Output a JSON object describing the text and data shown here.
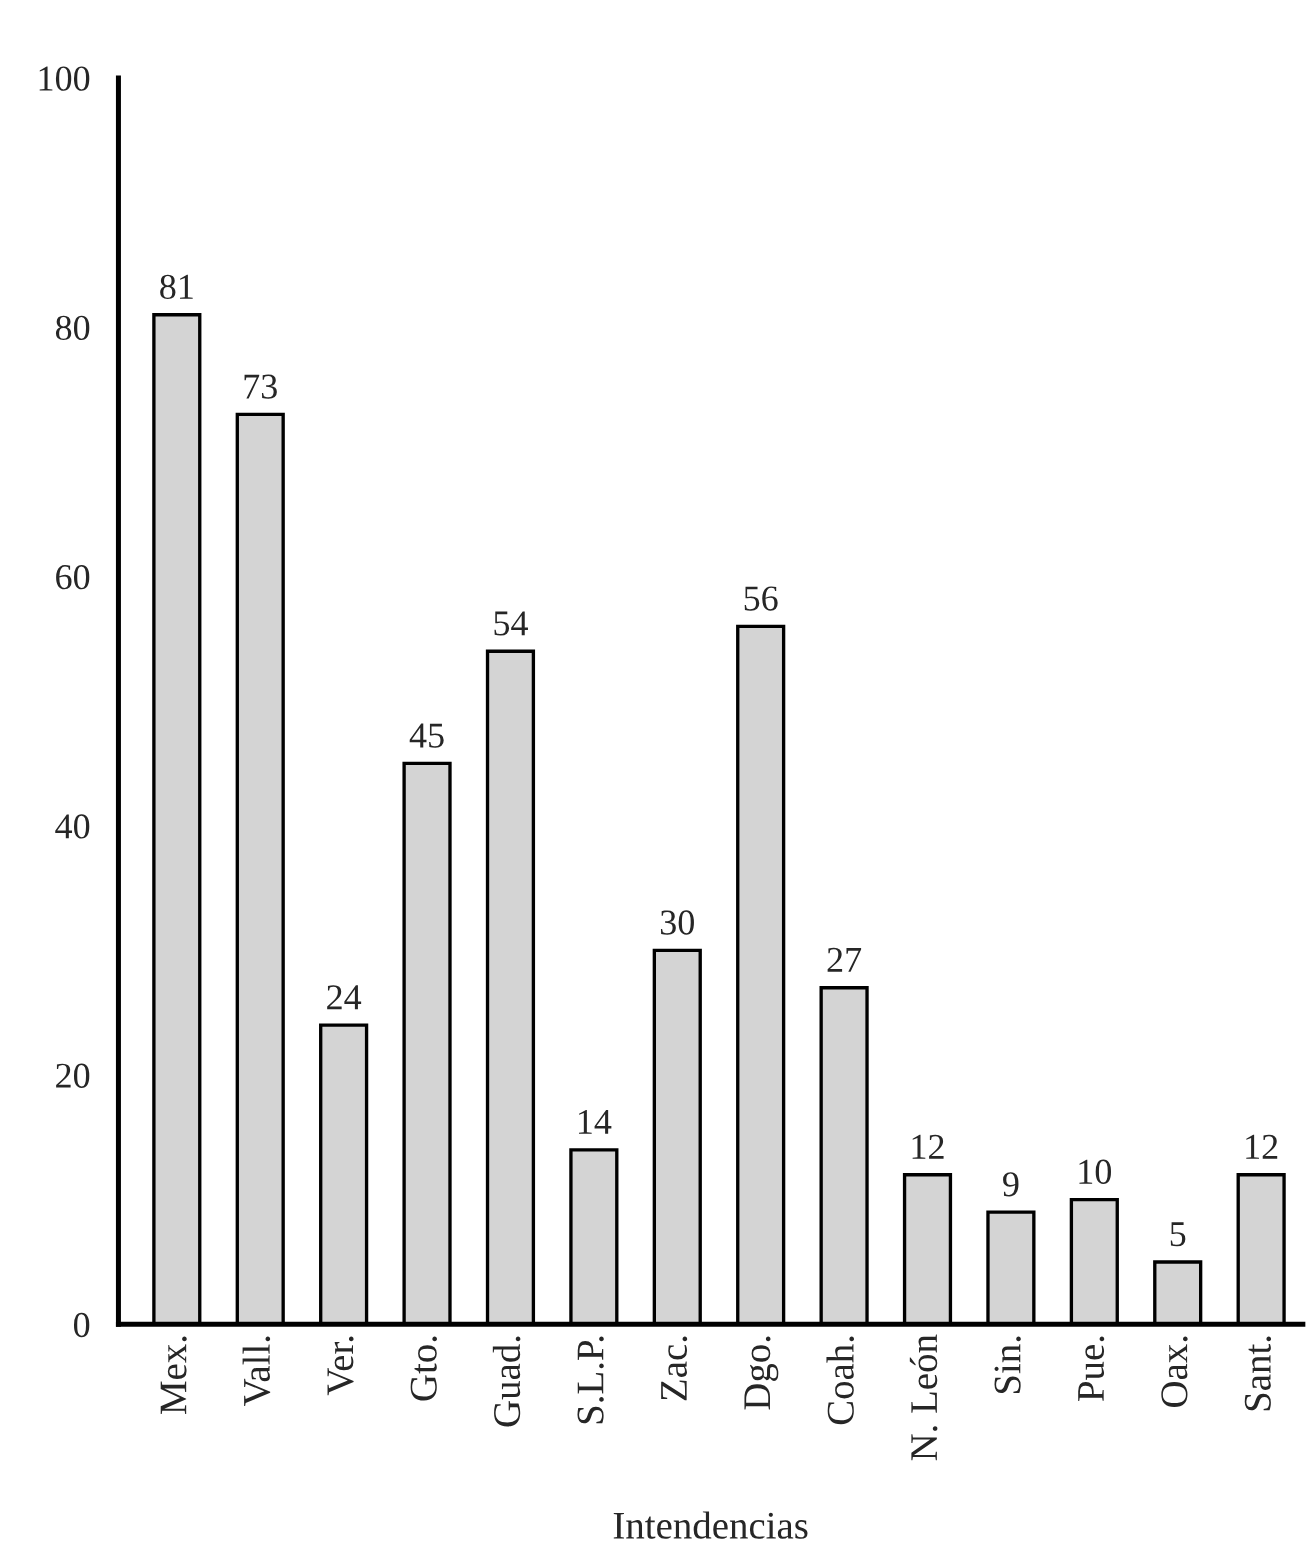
{
  "chart_data": {
    "type": "bar",
    "xlabel": "Intendencias",
    "categories": [
      "Mex.",
      "Vall.",
      "Ver.",
      "Gto.",
      "Guad.",
      "S.L.P.",
      "Zac.",
      "Dgo.",
      "Coah.",
      "N. León",
      "Sin.",
      "Pue.",
      "Oax.",
      "Sant."
    ],
    "values": [
      81,
      73,
      24,
      45,
      54,
      14,
      30,
      56,
      27,
      12,
      9,
      10,
      5,
      12
    ],
    "color": "#d4d4d4",
    "ylim": [
      0,
      100
    ],
    "yticks": [
      0,
      20,
      40,
      60,
      80,
      100
    ],
    "data_labels": true,
    "grid": false
  }
}
